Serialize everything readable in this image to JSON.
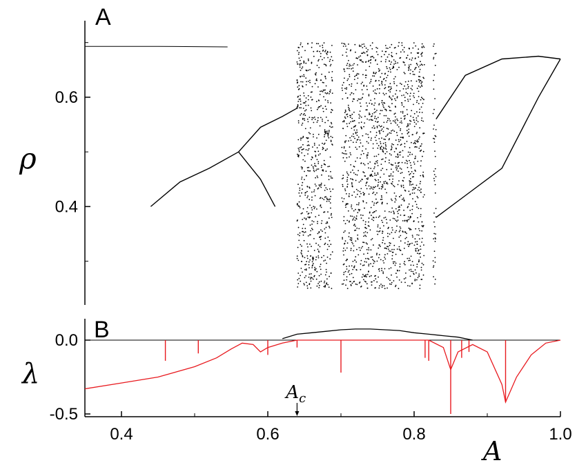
{
  "chart_data": [
    {
      "panel_label": "A",
      "type": "scatter",
      "title": "",
      "ylabel": "ρ",
      "xlabel": "",
      "xlim": [
        0.35,
        1.0
      ],
      "ylim": [
        0.22,
        0.74
      ],
      "yticks": [
        {
          "value": 0.4,
          "label": "0.4"
        },
        {
          "value": 0.6,
          "label": "0.6"
        }
      ],
      "grid": false,
      "legend": "none",
      "series_color": "#000000",
      "branches": [
        {
          "name": "",
          "x": [
            0.35,
            0.45,
            0.545
          ],
          "y": [
            0.693,
            0.693,
            0.692
          ]
        },
        {
          "name": "",
          "x": [
            0.44,
            0.48,
            0.52,
            0.56
          ],
          "y": [
            0.4,
            0.445,
            0.47,
            0.5
          ]
        },
        {
          "name": "",
          "x": [
            0.56,
            0.59,
            0.62,
            0.64
          ],
          "y": [
            0.5,
            0.545,
            0.565,
            0.58
          ]
        },
        {
          "name": "",
          "x": [
            0.56,
            0.59,
            0.61
          ],
          "y": [
            0.5,
            0.45,
            0.4
          ]
        },
        {
          "name": "",
          "x": [
            0.83,
            0.87,
            0.92,
            0.97,
            1.0
          ],
          "y": [
            0.56,
            0.64,
            0.67,
            0.675,
            0.67
          ]
        },
        {
          "name": "",
          "x": [
            0.83,
            0.87,
            0.92,
            0.97,
            1.0
          ],
          "y": [
            0.38,
            0.42,
            0.47,
            0.6,
            0.67
          ]
        }
      ],
      "chaotic_band": {
        "x_range": [
          0.64,
          0.83
        ],
        "y_range": [
          0.25,
          0.7
        ]
      },
      "periodic_windows_x": [
        0.695,
        0.82
      ]
    },
    {
      "panel_label": "B",
      "type": "line",
      "title": "",
      "ylabel": "λ",
      "xlabel": "A",
      "xlim": [
        0.35,
        1.0
      ],
      "ylim": [
        -0.55,
        0.12
      ],
      "xticks": [
        {
          "value": 0.4,
          "label": "0.4"
        },
        {
          "value": 0.6,
          "label": "0.6"
        },
        {
          "value": 0.8,
          "label": "0.8"
        },
        {
          "value": 1.0,
          "label": "1.0"
        }
      ],
      "yticks": [
        {
          "value": 0.0,
          "label": "0.0"
        },
        {
          "value": -0.5,
          "label": "-0.5"
        }
      ],
      "grid": false,
      "legend": "none",
      "zero_line": true,
      "series": [
        {
          "name": "",
          "color": "#e8191e",
          "x": [
            0.35,
            0.4,
            0.45,
            0.5,
            0.53,
            0.55,
            0.565,
            0.58,
            0.59,
            0.6,
            0.62,
            0.64,
            0.66,
            0.7,
            0.75,
            0.8,
            0.82,
            0.84,
            0.85,
            0.86,
            0.88,
            0.9,
            0.92,
            0.925,
            0.94,
            0.96,
            0.98,
            1.0
          ],
          "y": [
            -0.33,
            -0.29,
            -0.25,
            -0.18,
            -0.12,
            -0.06,
            -0.02,
            -0.03,
            -0.08,
            -0.05,
            -0.02,
            0.0,
            0.0,
            0.0,
            0.0,
            0.0,
            0.0,
            -0.05,
            -0.2,
            -0.08,
            -0.03,
            -0.08,
            -0.3,
            -0.42,
            -0.25,
            -0.1,
            -0.02,
            0.0
          ]
        },
        {
          "name": "",
          "color": "#000000",
          "x": [
            0.62,
            0.64,
            0.66,
            0.68,
            0.7,
            0.72,
            0.74,
            0.76,
            0.78,
            0.8,
            0.82,
            0.84,
            0.86,
            0.88
          ],
          "y": [
            0.01,
            0.04,
            0.05,
            0.06,
            0.07,
            0.075,
            0.075,
            0.07,
            0.065,
            0.05,
            0.04,
            0.03,
            0.02,
            0.0
          ]
        }
      ],
      "spikes": {
        "color": "#e8191e",
        "x": [
          0.46,
          0.505,
          0.6,
          0.64,
          0.7,
          0.815,
          0.82,
          0.85,
          0.865,
          0.875,
          0.925
        ],
        "y": [
          -0.14,
          -0.09,
          -0.1,
          -0.05,
          -0.22,
          -0.12,
          -0.14,
          -0.5,
          -0.12,
          -0.08,
          -0.42
        ]
      },
      "annotations": [
        {
          "text": "A",
          "subscript": "c",
          "x": 0.64,
          "y": -0.53,
          "arrow": true
        }
      ]
    }
  ]
}
